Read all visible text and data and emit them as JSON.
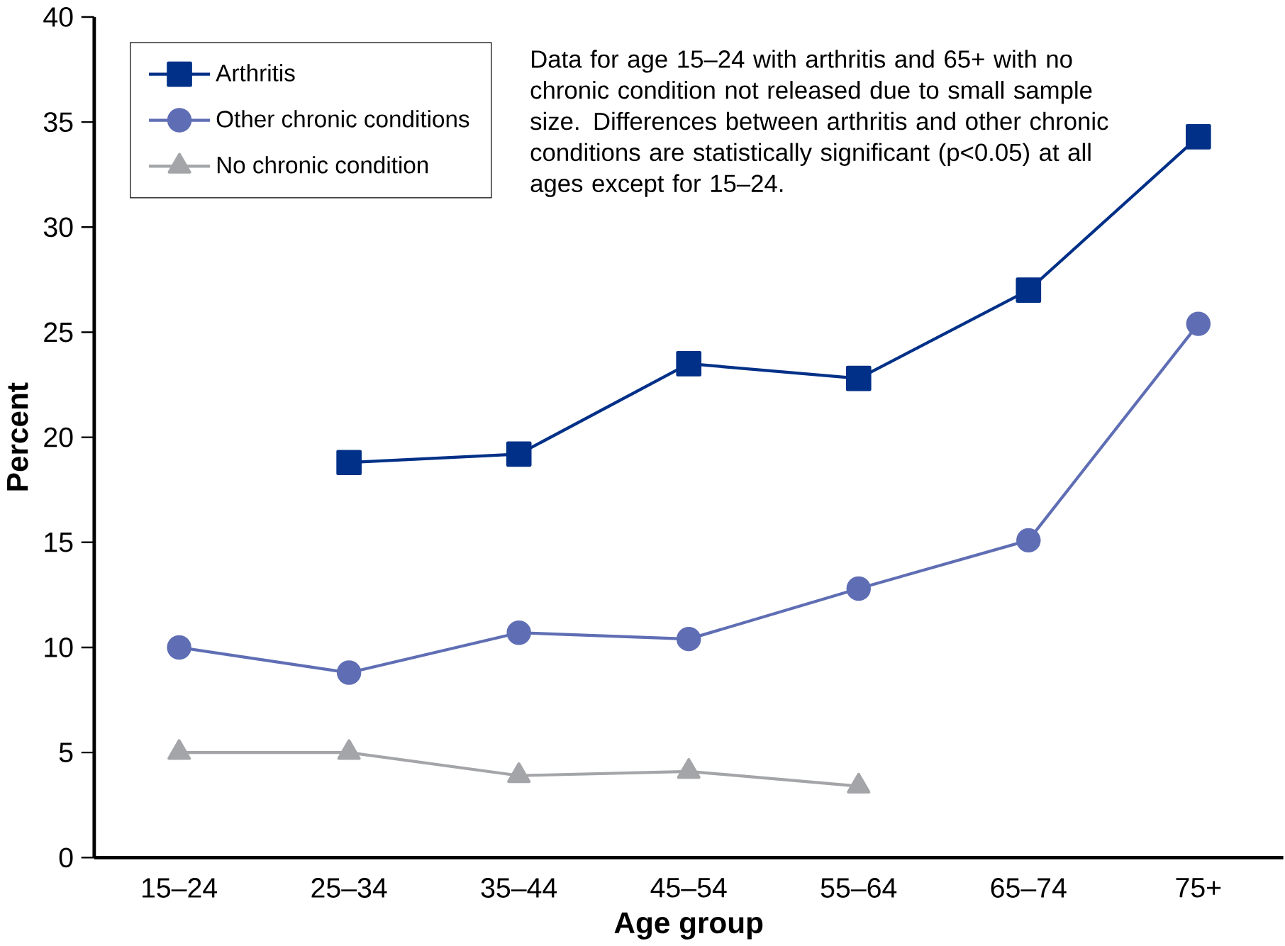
{
  "chart_data": {
    "type": "line",
    "xlabel": "Age group",
    "ylabel": "Percent",
    "categories": [
      "15–24",
      "25–34",
      "35–44",
      "45–54",
      "55–64",
      "65–74",
      "75+"
    ],
    "ylim": [
      0,
      40
    ],
    "yticks": [
      0,
      5,
      10,
      15,
      20,
      25,
      30,
      35,
      40
    ],
    "grid": false,
    "legend": "top left",
    "annotations": [
      "Data for age 15–24 with arthritis and 65+ with no chronic condition not released due to small sample size.  Differences between arthritis and other chronic conditions are statistically significant (p<0.05) at all ages except for 15–24."
    ],
    "series": [
      {
        "name": "Arthritis",
        "color": "#003087",
        "marker": "square",
        "values": [
          null,
          18.8,
          19.2,
          23.5,
          22.8,
          27.0,
          34.3
        ]
      },
      {
        "name": "Other chronic conditions",
        "color": "#5f6eb4",
        "marker": "circle",
        "values": [
          10.0,
          8.8,
          10.7,
          10.4,
          12.8,
          15.1,
          25.4
        ]
      },
      {
        "name": "No chronic condition",
        "color": "#a3a5a8",
        "marker": "triangle",
        "values": [
          5.0,
          5.0,
          3.9,
          4.1,
          3.4,
          null,
          null
        ]
      }
    ]
  }
}
